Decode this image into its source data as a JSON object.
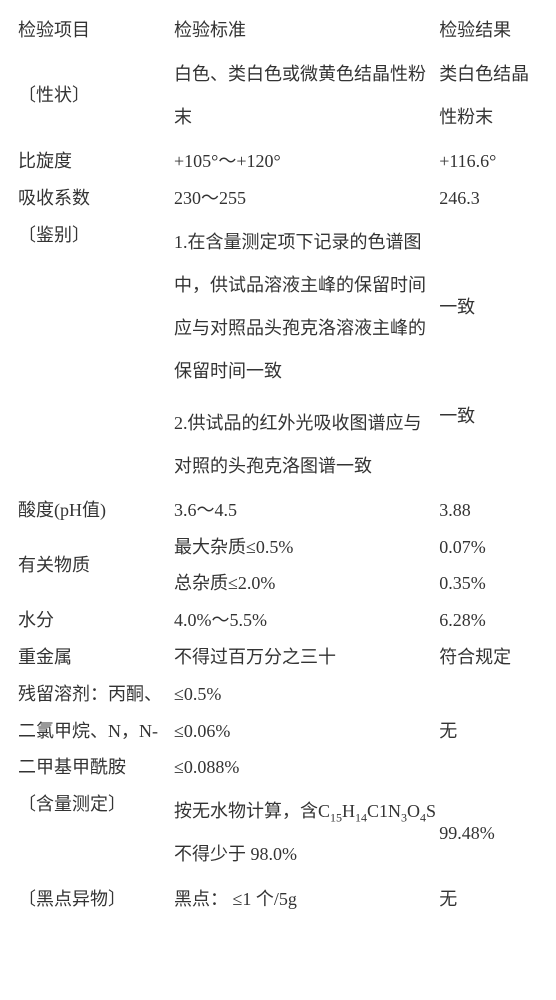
{
  "header": {
    "c1": "检验项目",
    "c2": "检验标准",
    "c3": "检验结果"
  },
  "rows": {
    "r1": {
      "c1": "〔性状〕",
      "c2": "白色、类白色或微黄色结晶性粉末",
      "c3": "类白色结晶性粉末"
    },
    "r2": {
      "c1": "比旋度",
      "c2": "+105°～+120°",
      "c3": "+116.6°"
    },
    "r3": {
      "c1": "吸收系数",
      "c2": "230～255",
      "c3": "246.3"
    },
    "r4": {
      "c1": "〔鉴别〕",
      "c2a": "1.在含量测定项下记录的色谱图中，供试品溶液主峰的保留时间应与对照品头孢克洛溶液主峰的保留时间一致",
      "c2b": "2.供试品的红外光吸收图谱应与对照的头孢克洛图谱一致",
      "c3a": "一致",
      "c3b": "一致"
    },
    "r5": {
      "c1": "酸度(pH值)",
      "c2": "3.6～4.5",
      "c3": "3.88"
    },
    "r6": {
      "c1": "有关物质",
      "c2a": "最大杂质≤0.5%",
      "c2b": "总杂质≤2.0%",
      "c3a": "0.07%",
      "c3b": "0.35%"
    },
    "r7": {
      "c1": "水分",
      "c2": "4.0%～5.5%",
      "c3": "6.28%"
    },
    "r8": {
      "c1": "重金属",
      "c2": "不得过百万分之三十",
      "c3": "符合规定"
    },
    "r9": {
      "c1": "残留溶剂：丙酮、",
      "c2": "≤0.5%",
      "c3": ""
    },
    "r10": {
      "c1": "二氯甲烷、N，N-",
      "c2": "≤0.06%",
      "c3": "无"
    },
    "r11": {
      "c1": "二甲基甲酰胺",
      "c2": "≤0.088%",
      "c3": ""
    },
    "r12": {
      "c1": "〔含量测定〕",
      "c2p1": "按无水物计算，含C",
      "c2p2": "不得少于 98.0%",
      "c3": "99.48%",
      "f15": "15",
      "f14": "14",
      "f3": "3",
      "f4": "4",
      "h": "H",
      "cl": "C1N",
      "o": "O",
      "s": "S"
    },
    "r13": {
      "c1": "〔黑点异物〕",
      "c2": "黑点： ≤1 个/5g",
      "c3": "无"
    }
  },
  "colors": {
    "text": "#333333",
    "bg": "#ffffff"
  },
  "typography": {
    "font_family": "SimSun",
    "body_fontsize": 18,
    "sub_fontsize": 12
  }
}
